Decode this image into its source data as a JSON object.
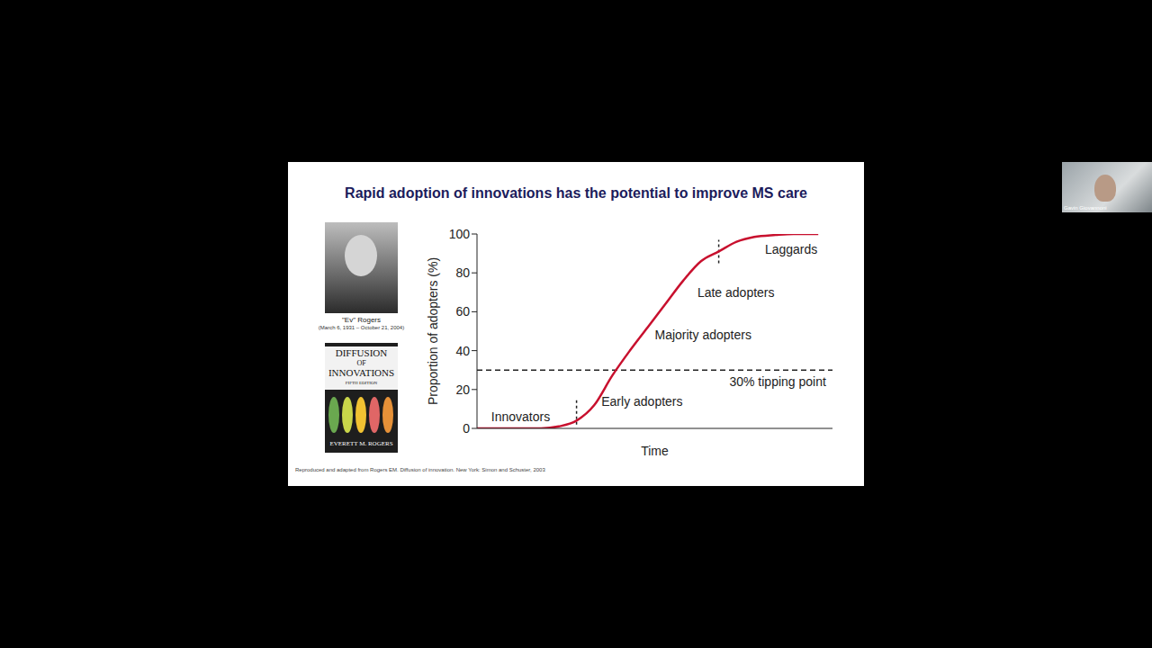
{
  "chart_data": {
    "type": "line",
    "title": "Rapid adoption of innovations has the potential to improve MS care",
    "x_label": "Time",
    "y_label": "Proportion of adopters (%)",
    "x": [
      0,
      10,
      18,
      23,
      28,
      33,
      38,
      43,
      48,
      53,
      58,
      63,
      68,
      73,
      78,
      84,
      89,
      96
    ],
    "values": [
      0,
      0,
      0,
      1,
      4,
      12,
      27,
      40,
      52,
      64,
      76,
      86,
      91,
      96,
      98.5,
      99.5,
      100,
      100
    ],
    "color": "#c8102e",
    "xlim": [
      0,
      100
    ],
    "ylim": [
      0,
      100
    ],
    "yticks": [
      0,
      20,
      40,
      60,
      80,
      100
    ],
    "tick_labels": "y",
    "grid": false,
    "reference_line": {
      "y": 30,
      "line_style": "dashed"
    },
    "dividers": [
      {
        "x": 28,
        "y": [
          2,
          15
        ]
      },
      {
        "x": 68,
        "y": [
          85,
          97
        ]
      }
    ],
    "annotations": [
      {
        "text": "Innovators",
        "x": 4,
        "y": 6
      },
      {
        "text": "Early adopters",
        "x": 35,
        "y": 14
      },
      {
        "text": "Majority adopters",
        "x": 50,
        "y": 48
      },
      {
        "text": "Late adopters",
        "x": 62,
        "y": 70
      },
      {
        "text": "Laggards",
        "x": 81,
        "y": 92
      },
      {
        "text": "30% tipping point",
        "x": 71,
        "y": 24
      }
    ]
  },
  "slide": {
    "portrait_caption": "\"Ev\" Rogers",
    "portrait_dates": "(March 6, 1931 – October 21, 2004)",
    "book": {
      "lines": [
        "DIFFUSION",
        "OF",
        "INNOVATIONS"
      ],
      "edition": "FIFTH EDITION",
      "author": "EVERETT M. ROGERS"
    },
    "footnote": "Reproduced and adapted from Rogers EM. Diffusion of innovation. New York: Simon and Schuster, 2003",
    "presenter": "Gavin Giovannoni"
  }
}
